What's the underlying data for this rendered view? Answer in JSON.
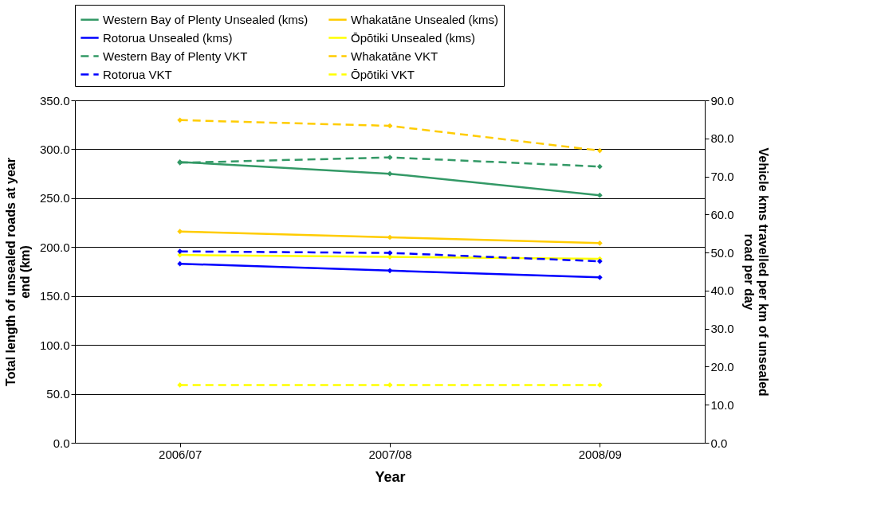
{
  "chart_data": {
    "type": "line",
    "xlabel": "Year",
    "ylabel": "Total length of unsealed roads at year end (km)",
    "y2label": "Vehicle kms travelled per km of unsealed road per day",
    "categories": [
      "2006/07",
      "2007/08",
      "2008/09"
    ],
    "series": [
      {
        "name": "Western Bay of Plenty Unsealed (kms)",
        "color": "#339966",
        "values": [
          287,
          275,
          253
        ],
        "line_style": "solid"
      },
      {
        "name": "Whakatāne Unsealed (kms)",
        "color": "#ffcc00",
        "values": [
          216,
          210,
          204
        ],
        "line_style": "solid"
      },
      {
        "name": "Rotorua Unsealed (kms)",
        "color": "#0000ff",
        "values": [
          183,
          176,
          169
        ],
        "line_style": "solid"
      },
      {
        "name": "Ōpōtiki Unsealed (kms)",
        "color": "#ffff00",
        "values": [
          192,
          190,
          188
        ],
        "line_style": "solid"
      },
      {
        "name": "Western Bay of Plenty VKT",
        "color": "#339966",
        "values": [
          73.6,
          75.0,
          72.6
        ],
        "line_style": "dashed",
        "axis": "y2"
      },
      {
        "name": "Whakatāne VKT",
        "color": "#ffcc00",
        "values": [
          84.8,
          83.3,
          76.8
        ],
        "line_style": "dashed",
        "axis": "y2"
      },
      {
        "name": "Rotorua VKT",
        "color": "#0000ff",
        "values": [
          50.3,
          49.9,
          47.7
        ],
        "line_style": "dashed",
        "axis": "y2"
      },
      {
        "name": "Ōpōtiki VKT",
        "color": "#ffff00",
        "values": [
          15.2,
          15.2,
          15.2
        ],
        "line_style": "dashed",
        "axis": "y2"
      }
    ],
    "ylim": [
      0,
      350
    ],
    "yticks": [
      {
        "value": 0,
        "label": "0.0"
      },
      {
        "value": 50,
        "label": "50.0"
      },
      {
        "value": 100,
        "label": "100.0"
      },
      {
        "value": 150,
        "label": "150.0"
      },
      {
        "value": 200,
        "label": "200.0"
      },
      {
        "value": 250,
        "label": "250.0"
      },
      {
        "value": 300,
        "label": "300.0"
      },
      {
        "value": 350,
        "label": "350.0"
      }
    ],
    "y2lim": [
      0,
      90
    ],
    "y2ticks": [
      {
        "value": 0,
        "label": "0.0"
      },
      {
        "value": 10,
        "label": "10.0"
      },
      {
        "value": 20,
        "label": "20.0"
      },
      {
        "value": 30,
        "label": "30.0"
      },
      {
        "value": 40,
        "label": "40.0"
      },
      {
        "value": 50,
        "label": "50.0"
      },
      {
        "value": 60,
        "label": "60.0"
      },
      {
        "value": 70,
        "label": "70.0"
      },
      {
        "value": 80,
        "label": "80.0"
      },
      {
        "value": 90,
        "label": "90.0"
      }
    ],
    "grid": "y",
    "legend": "top",
    "marker": "diamond"
  }
}
